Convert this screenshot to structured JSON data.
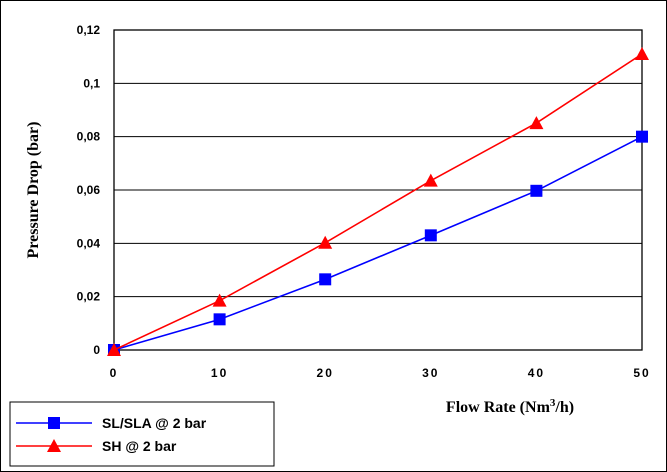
{
  "chart_data": {
    "type": "line",
    "x": [
      0,
      10,
      20,
      30,
      40,
      50
    ],
    "series": [
      {
        "name": "SL/SLA @ 2 bar",
        "values": [
          0,
          0.0115,
          0.0265,
          0.043,
          0.0597,
          0.08
        ],
        "color": "#0000ff",
        "marker": "square"
      },
      {
        "name": "SH @ 2 bar",
        "values": [
          0,
          0.0185,
          0.0402,
          0.0635,
          0.0851,
          0.111
        ],
        "color": "#ff0000",
        "marker": "triangle"
      }
    ],
    "xticks": [
      "0",
      "10",
      "20",
      "30",
      "40",
      "50"
    ],
    "yticks": [
      "0",
      "0,02",
      "0,04",
      "0,06",
      "0,08",
      "0,1",
      "0,12"
    ],
    "xlim": [
      0,
      50
    ],
    "ylim": [
      0,
      0.12
    ],
    "xlabel_main": "Flow Rate (Nm",
    "xlabel_sup": "3",
    "xlabel_tail": "/h)",
    "ylabel": "Pressure Drop (bar)",
    "grid": "horizontal",
    "legend_position": "bottom-left"
  }
}
